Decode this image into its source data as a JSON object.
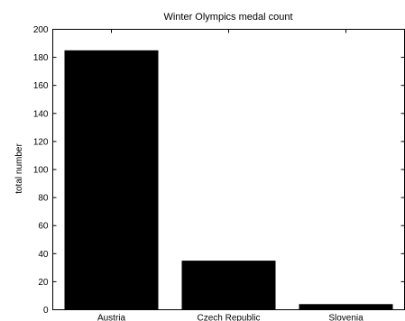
{
  "chart_data": {
    "type": "bar",
    "title": "Winter Olympics medal count",
    "xlabel": "",
    "ylabel": "total number",
    "categories": [
      "Austria",
      "Czech Republic",
      "Slovenia"
    ],
    "values": [
      185,
      35,
      4
    ],
    "ylim": [
      0,
      200
    ],
    "yticks": [
      0,
      20,
      40,
      60,
      80,
      100,
      120,
      140,
      160,
      180,
      200
    ],
    "bar_color": "#000000",
    "grid": false,
    "legend": "none"
  }
}
